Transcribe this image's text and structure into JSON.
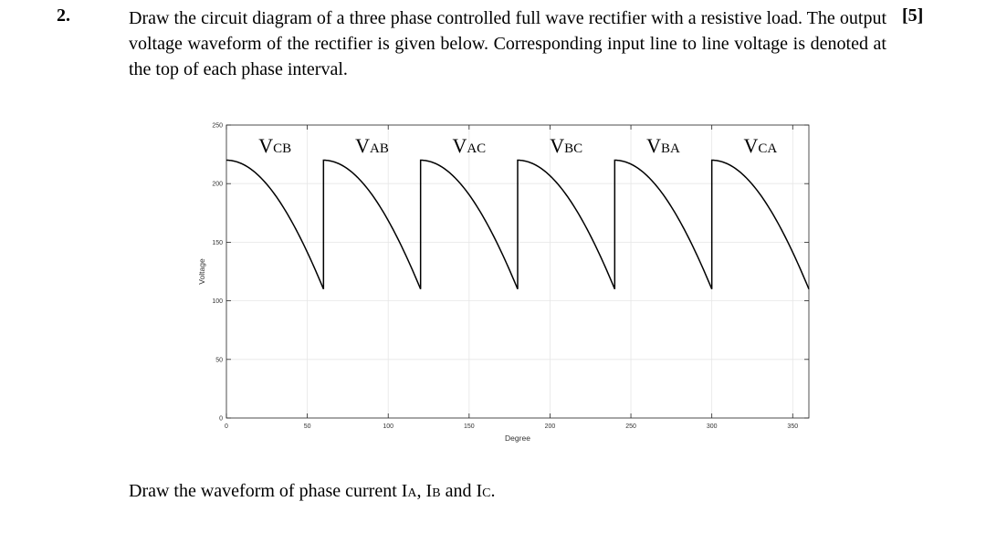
{
  "question": {
    "number": "2.",
    "marks": "[5]",
    "text": "Draw the circuit diagram of a three phase controlled full wave rectifier with a resistive load. The output voltage waveform of the rectifier is given below. Corresponding input line to line voltage is denoted at the top of each phase interval."
  },
  "chart_data": {
    "type": "line",
    "xlabel": "Degree",
    "ylabel": "Voltage",
    "xlim": [
      0,
      360
    ],
    "ylim": [
      0,
      250
    ],
    "xticks": [
      0,
      50,
      100,
      150,
      200,
      250,
      300,
      350
    ],
    "yticks": [
      0,
      50,
      100,
      150,
      200,
      250
    ],
    "grid": true,
    "waveform": {
      "peak": 220,
      "min": 110,
      "interval_deg": 60,
      "segments": 6
    },
    "segment_labels": [
      {
        "main": "V",
        "sub": "CB"
      },
      {
        "main": "V",
        "sub": "AB"
      },
      {
        "main": "V",
        "sub": "AC"
      },
      {
        "main": "V",
        "sub": "BC"
      },
      {
        "main": "V",
        "sub": "BA"
      },
      {
        "main": "V",
        "sub": "CA"
      }
    ],
    "line_color": "#000000",
    "grid_color": "#e6e6e6"
  },
  "footer": {
    "prefix": "Draw the waveform of phase current I",
    "sub_a": "A",
    "sep1": ", I",
    "sub_b": "B",
    "sep2": " and I",
    "sub_c": "C",
    "suffix": "."
  }
}
